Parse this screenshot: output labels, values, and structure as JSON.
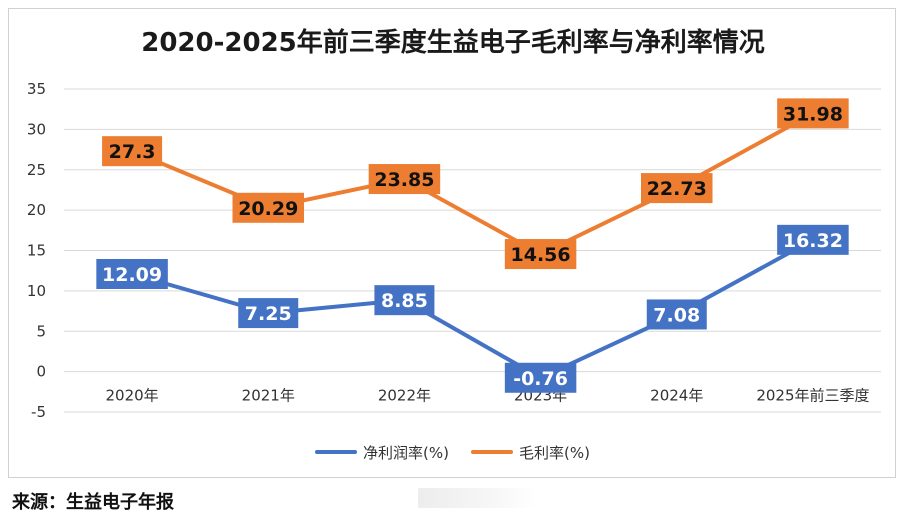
{
  "chart_data": {
    "type": "line",
    "title": "2020-2025年前三季度生益电子毛利率与净利率情况",
    "categories": [
      "2020年",
      "2021年",
      "2022年",
      "2023年",
      "2024年",
      "2025年前三季度"
    ],
    "ylim": [
      -5,
      35
    ],
    "yticks": [
      "35",
      "30",
      "25",
      "20",
      "15",
      "10",
      "5",
      "0",
      "-5"
    ],
    "grid": true,
    "legend_position": "bottom",
    "series": [
      {
        "name": "净利润率(%)",
        "color": "#4472C4",
        "values": [
          12.09,
          7.25,
          8.85,
          -0.76,
          7.08,
          16.32
        ],
        "labels": [
          "12.09",
          "7.25",
          "8.85",
          "-0.76",
          "7.08",
          "16.32"
        ]
      },
      {
        "name": "毛利率(%)",
        "color": "#ED7D31",
        "values": [
          27.3,
          20.29,
          23.85,
          14.56,
          22.73,
          31.98
        ],
        "labels": [
          "27.3",
          "20.29",
          "23.85",
          "14.56",
          "22.73",
          "31.98"
        ]
      }
    ]
  },
  "footer": {
    "source": "来源：生益电子年报"
  }
}
